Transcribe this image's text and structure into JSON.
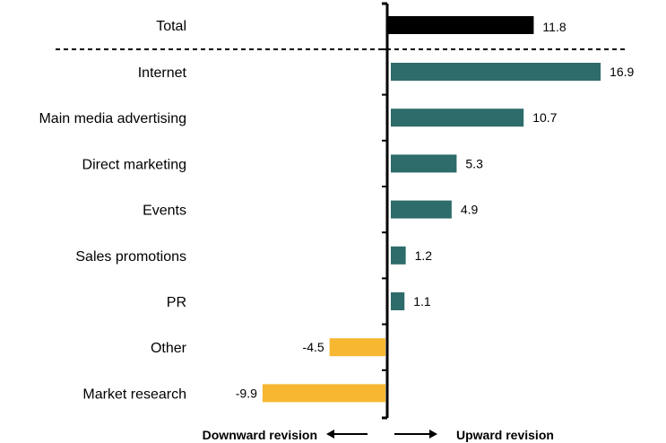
{
  "chart_data": {
    "type": "bar",
    "orientation": "horizontal",
    "total": {
      "category": "Total",
      "value": 11.8,
      "value_label": "11.8"
    },
    "categories": [
      "Internet",
      "Main media advertising",
      "Direct marketing",
      "Events",
      "Sales promotions",
      "PR",
      "Other",
      "Market research"
    ],
    "values": [
      16.9,
      10.7,
      5.3,
      4.9,
      1.2,
      1.1,
      -4.5,
      -9.9
    ],
    "value_labels": [
      "16.9",
      "10.7",
      "5.3",
      "4.9",
      "1.2",
      "1.1",
      "-4.5",
      "-9.9"
    ],
    "xlim": [
      -10,
      18
    ],
    "grid": false,
    "legend": "none",
    "footer": {
      "downward_label": "Downward revision",
      "upward_label": "Upward revision"
    },
    "colors": {
      "total": "#000000",
      "positive": "#2e6b6b",
      "negative": "#f7b731",
      "axis": "#000000",
      "text": "#000000"
    }
  }
}
